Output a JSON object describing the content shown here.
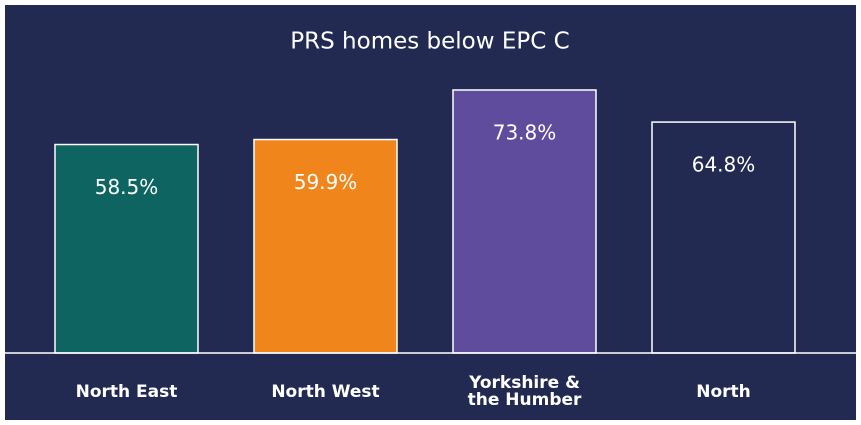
{
  "chart_data": {
    "type": "bar",
    "title": "PRS homes below EPC C",
    "categories": [
      "North East",
      "North West",
      "Yorkshire & the Humber",
      "North"
    ],
    "values": [
      58.5,
      59.9,
      73.8,
      64.8
    ],
    "value_labels": [
      "58.5%",
      "59.9%",
      "73.8%",
      "64.8%"
    ],
    "colors": [
      "#0d6461",
      "#f0851c",
      "#604c9c",
      "#232a52"
    ]
  }
}
